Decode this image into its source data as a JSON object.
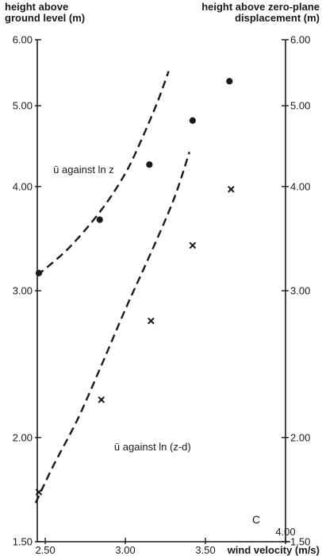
{
  "chart_data": {
    "type": "scatter",
    "y_scale": "log",
    "xlim": [
      2.45,
      4.0
    ],
    "ylim": [
      1.5,
      6.0
    ],
    "x_ticks": [
      {
        "value": 2.5,
        "label": "2.50"
      },
      {
        "value": 3.0,
        "label": "3.00"
      },
      {
        "value": 3.5,
        "label": "3.50"
      },
      {
        "value": 4.0,
        "label": "4.00"
      }
    ],
    "y_ticks_left": [
      {
        "value": 1.5,
        "label": "1.50"
      },
      {
        "value": 2.0,
        "label": "2.00"
      },
      {
        "value": 3.0,
        "label": "3.00"
      },
      {
        "value": 4.0,
        "label": "4.00"
      },
      {
        "value": 5.0,
        "label": "5.00"
      },
      {
        "value": 6.0,
        "label": "6.00"
      }
    ],
    "y_ticks_right": [
      {
        "value": 1.5,
        "label": "1.50"
      },
      {
        "value": 2.0,
        "label": "2.00"
      },
      {
        "value": 3.0,
        "label": "3.00"
      },
      {
        "value": 4.0,
        "label": "4.00"
      },
      {
        "value": 5.0,
        "label": "5.00"
      },
      {
        "value": 6.0,
        "label": "6.00"
      }
    ],
    "ylabel_left": [
      "height above",
      "ground level (m)"
    ],
    "ylabel_right": [
      "height above zero-plane",
      "displacement (m)"
    ],
    "xlabel": "wind velocity (m/s)",
    "panel_label": "C",
    "grid": false,
    "series": [
      {
        "marker": "circle",
        "points": [
          {
            "x": 2.46,
            "y": 3.15
          },
          {
            "x": 2.84,
            "y": 3.65
          },
          {
            "x": 3.15,
            "y": 4.25
          },
          {
            "x": 3.42,
            "y": 4.8
          },
          {
            "x": 3.65,
            "y": 5.35
          }
        ]
      },
      {
        "marker": "cross",
        "points": [
          {
            "x": 2.46,
            "y": 1.72
          },
          {
            "x": 2.85,
            "y": 2.22
          },
          {
            "x": 3.16,
            "y": 2.76
          },
          {
            "x": 3.42,
            "y": 3.4
          },
          {
            "x": 3.66,
            "y": 3.97
          }
        ]
      }
    ],
    "fit_lines": [
      {
        "label": "ū against ln z",
        "label_position": {
          "x": 2.55,
          "y": 4.15
        },
        "points": [
          {
            "x": 2.45,
            "y": 3.13
          },
          {
            "x": 2.65,
            "y": 3.38
          },
          {
            "x": 2.85,
            "y": 3.75
          },
          {
            "x": 3.0,
            "y": 4.15
          },
          {
            "x": 3.1,
            "y": 4.55
          },
          {
            "x": 3.2,
            "y": 5.05
          },
          {
            "x": 3.27,
            "y": 5.5
          }
        ]
      },
      {
        "label": "ū against ln (z-d)",
        "label_position": {
          "x": 2.93,
          "y": 1.93
        },
        "points": [
          {
            "x": 2.44,
            "y": 1.67
          },
          {
            "x": 2.55,
            "y": 1.85
          },
          {
            "x": 2.7,
            "y": 2.1
          },
          {
            "x": 2.85,
            "y": 2.44
          },
          {
            "x": 3.0,
            "y": 2.85
          },
          {
            "x": 3.15,
            "y": 3.3
          },
          {
            "x": 3.3,
            "y": 3.85
          },
          {
            "x": 3.4,
            "y": 4.4
          }
        ]
      }
    ]
  }
}
